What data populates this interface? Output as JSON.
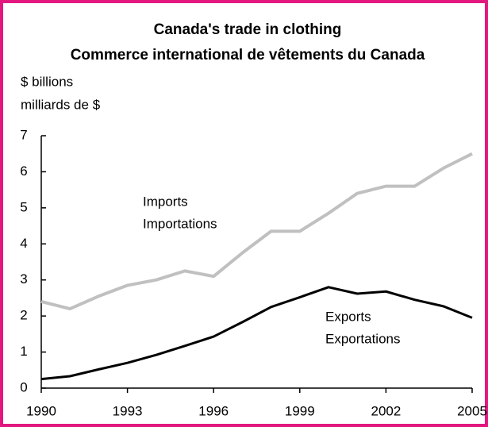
{
  "chart_data": {
    "type": "line",
    "title": "Canada's trade in clothing",
    "subtitle": "Commerce international de vêtements du Canada",
    "y_label": "$ billions",
    "y_label_fr": "milliards de $",
    "x": [
      1990,
      1991,
      1992,
      1993,
      1994,
      1995,
      1996,
      1997,
      1998,
      1999,
      2000,
      2001,
      2002,
      2003,
      2004,
      2005
    ],
    "series": [
      {
        "name": "Imports",
        "label_fr": "Importations",
        "color": "#c0c0c0",
        "values": [
          2.4,
          2.2,
          2.55,
          2.85,
          3.0,
          3.25,
          3.1,
          3.75,
          4.35,
          4.35,
          4.85,
          5.4,
          5.6,
          5.6,
          6.1,
          6.5
        ]
      },
      {
        "name": "Exports",
        "label_fr": "Exportations",
        "color": "#000000",
        "values": [
          0.25,
          0.33,
          0.52,
          0.7,
          0.92,
          1.17,
          1.43,
          1.83,
          2.25,
          2.52,
          2.8,
          2.62,
          2.68,
          2.45,
          2.27,
          1.95
        ]
      }
    ],
    "xlim": [
      1990,
      2005
    ],
    "xticks": [
      1990,
      1993,
      1996,
      1999,
      2002,
      2005
    ],
    "ylim": [
      0,
      7
    ],
    "yticks": [
      0,
      1,
      2,
      3,
      4,
      5,
      6,
      7
    ],
    "grid": false
  }
}
